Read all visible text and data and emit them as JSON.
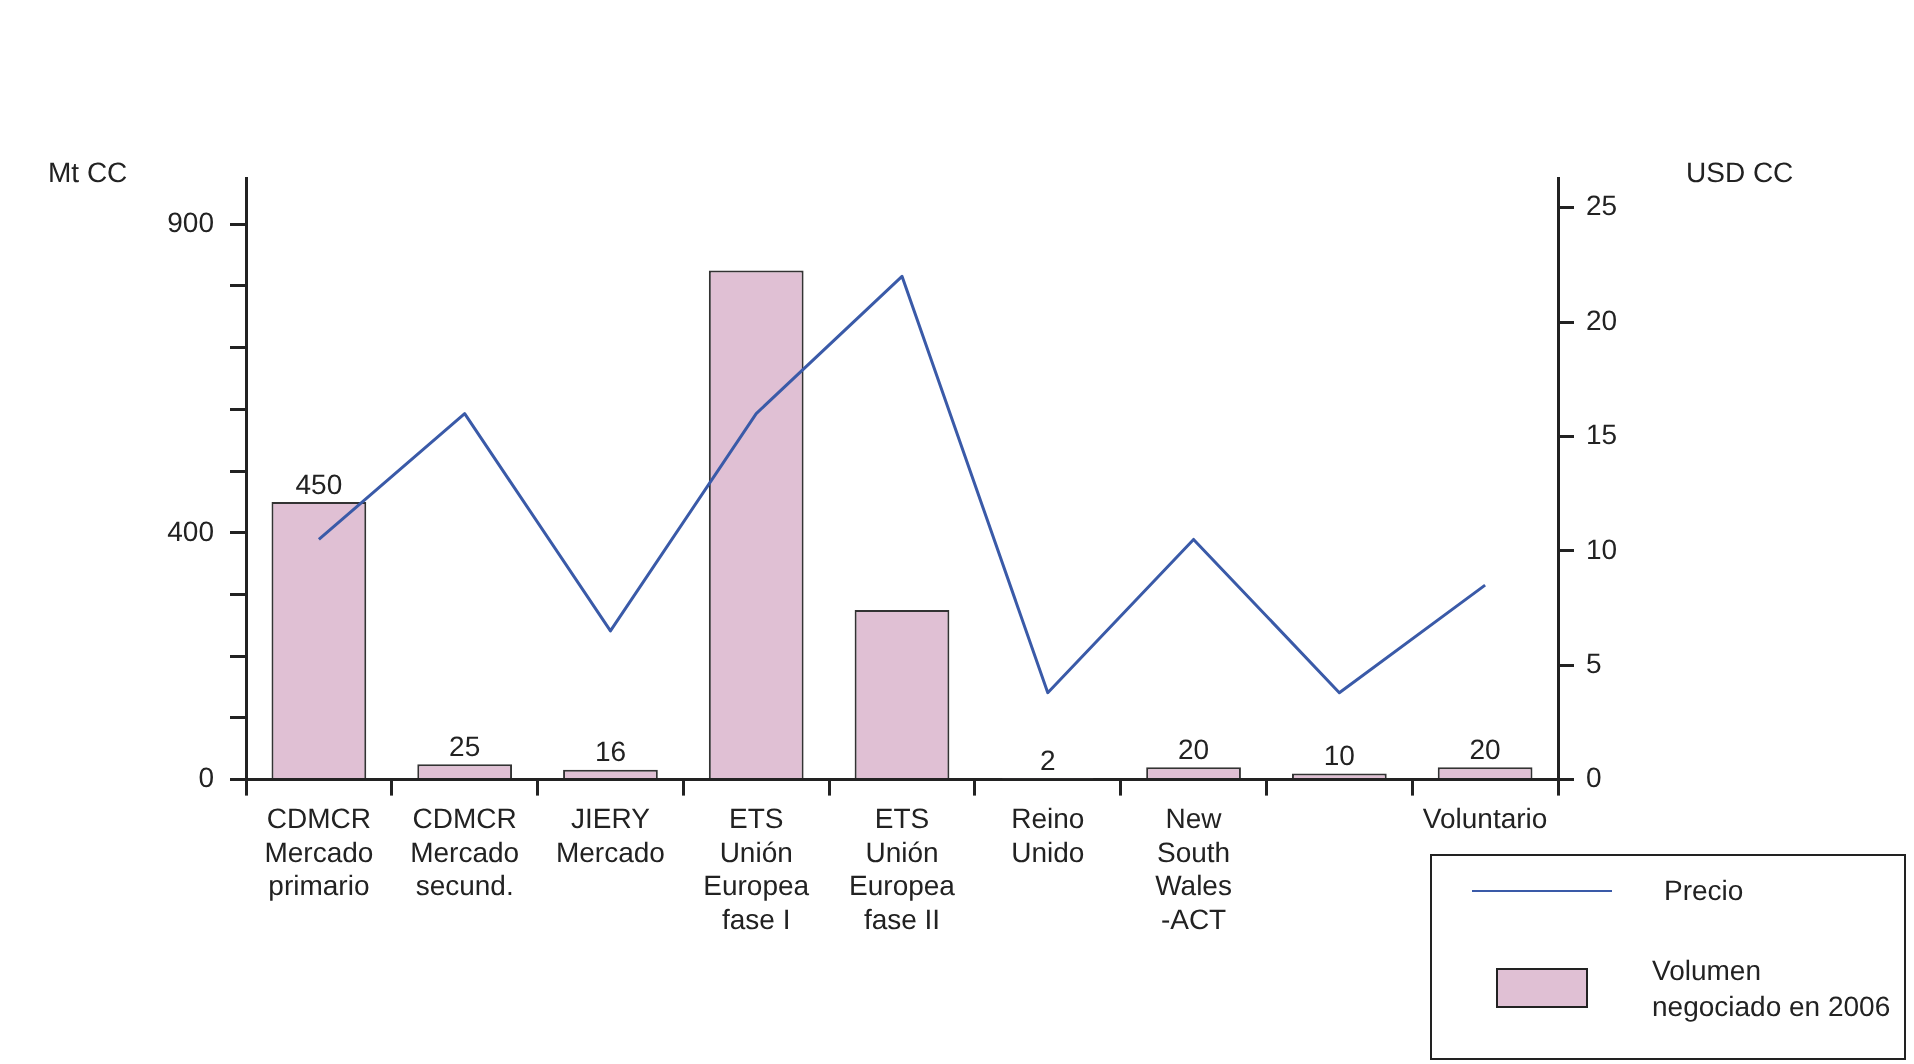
{
  "chart_data": {
    "type": "bar",
    "categories": [
      "CDMCR\nMercado\nprimario",
      "CDMCR\nMercado\nsecund.",
      "JIERY\nMercado",
      "ETS\nUnión\nEuropea\nfase I",
      "ETS\nUnión\nEuropea\nfase II",
      "Reino\nUnido",
      "New\nSouth\nWales\n-ACT",
      null,
      "Voluntario"
    ],
    "series": [
      {
        "name": "Volumen\nnegociado en 2006",
        "color": "#e0c0d4",
        "values": [
          450,
          25,
          16,
          825,
          275,
          2,
          20,
          10,
          20
        ],
        "value_labels": [
          "450",
          "25",
          "16",
          null,
          null,
          "2",
          "20",
          "10",
          "20"
        ]
      },
      {
        "name": "Precio",
        "type": "line",
        "axis": "y2",
        "color": "#3a5aa8",
        "values": [
          10.5,
          16,
          6.5,
          16,
          22,
          3.8,
          10.5,
          3.8,
          8.5
        ]
      }
    ],
    "ylabel": "Mt CC",
    "y2label": "USD CC",
    "ylim": [
      0,
      975
    ],
    "yticks": [
      0,
      {
        "value": 100,
        "label": null
      },
      {
        "value": 200,
        "label": null
      },
      {
        "value": 300,
        "label": null
      },
      400,
      {
        "value": 500,
        "label": null
      },
      {
        "value": 600,
        "label": null
      },
      {
        "value": 700,
        "label": null
      },
      {
        "value": 800,
        "label": null
      },
      900
    ],
    "y2lim": [
      0,
      26.3
    ],
    "y2ticks": [
      0,
      5,
      10,
      15,
      20,
      25
    ],
    "legend": "bottom right",
    "grid": false,
    "marker": "none"
  }
}
